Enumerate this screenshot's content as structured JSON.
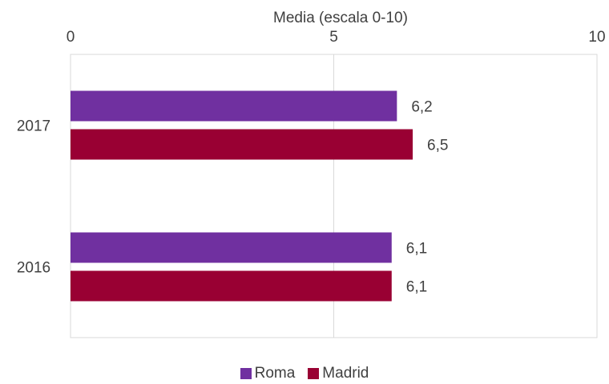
{
  "chart_data": {
    "type": "bar",
    "orientation": "horizontal",
    "title": "",
    "xlabel": "Media (escala 0-10)",
    "ylabel": "",
    "xlim": [
      0,
      10
    ],
    "x_ticks": [
      "0",
      "5",
      "10"
    ],
    "x_axis_position": "top",
    "grid": true,
    "legend_position": "bottom",
    "categories": [
      "2017",
      "2016"
    ],
    "series": [
      {
        "name": "Roma",
        "color": "#7030a0",
        "values": [
          6.2,
          6.1
        ],
        "labels": [
          "6,2",
          "6,1"
        ]
      },
      {
        "name": "Madrid",
        "color": "#990033",
        "values": [
          6.5,
          6.1
        ],
        "labels": [
          "6,5",
          "6,1"
        ]
      }
    ]
  }
}
